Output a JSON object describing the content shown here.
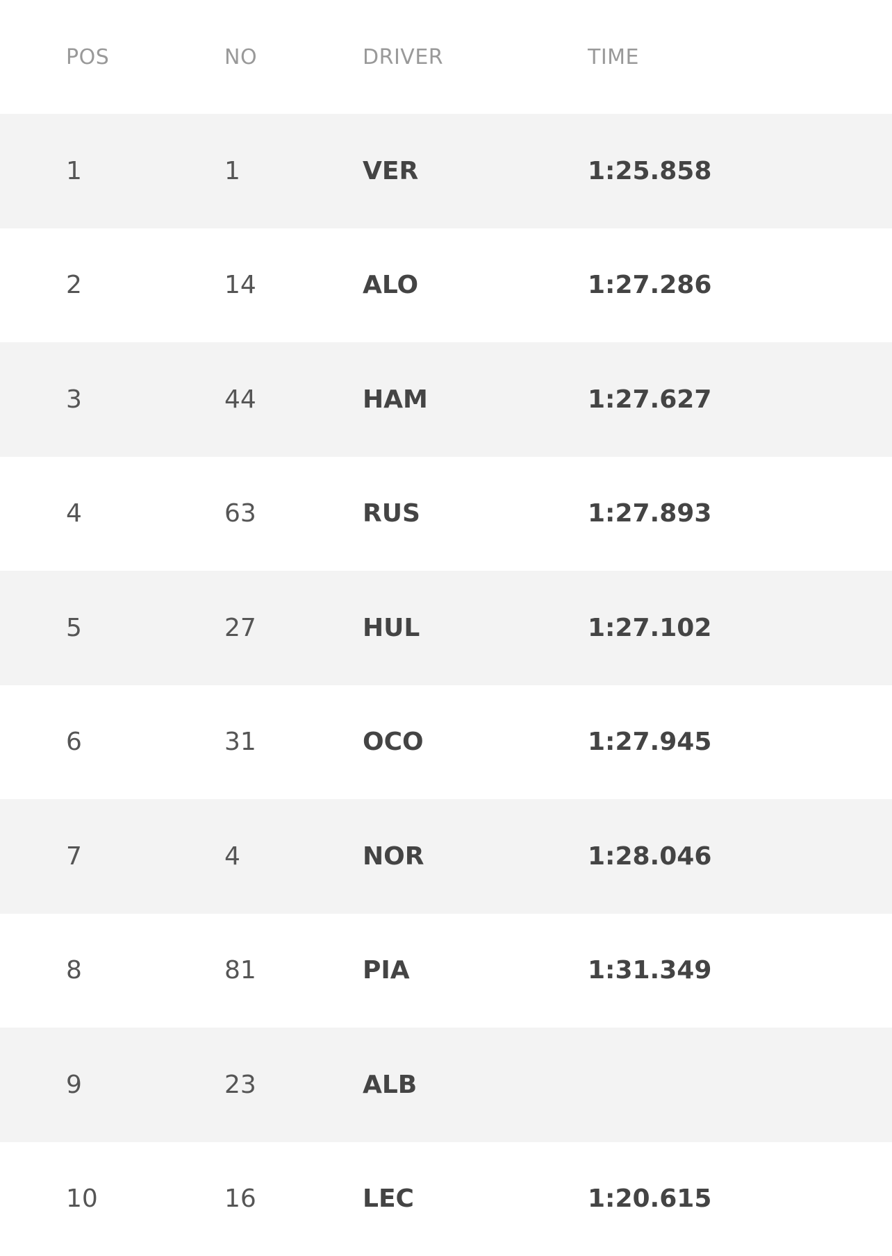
{
  "table": {
    "columns": [
      "POS",
      "NO",
      "DRIVER",
      "TIME"
    ],
    "rows": [
      [
        "1",
        "1",
        "VER",
        "1:25.858"
      ],
      [
        "2",
        "14",
        "ALO",
        "1:27.286"
      ],
      [
        "3",
        "44",
        "HAM",
        "1:27.627"
      ],
      [
        "4",
        "63",
        "RUS",
        "1:27.893"
      ],
      [
        "5",
        "27",
        "HUL",
        "1:27.102"
      ],
      [
        "6",
        "31",
        "OCO",
        "1:27.945"
      ],
      [
        "7",
        "4",
        "NOR",
        "1:28.046"
      ],
      [
        "8",
        "81",
        "PIA",
        "1:31.349"
      ],
      [
        "9",
        "23",
        "ALB",
        null
      ],
      [
        "10",
        "16",
        "LEC",
        "1:20.615"
      ]
    ]
  }
}
